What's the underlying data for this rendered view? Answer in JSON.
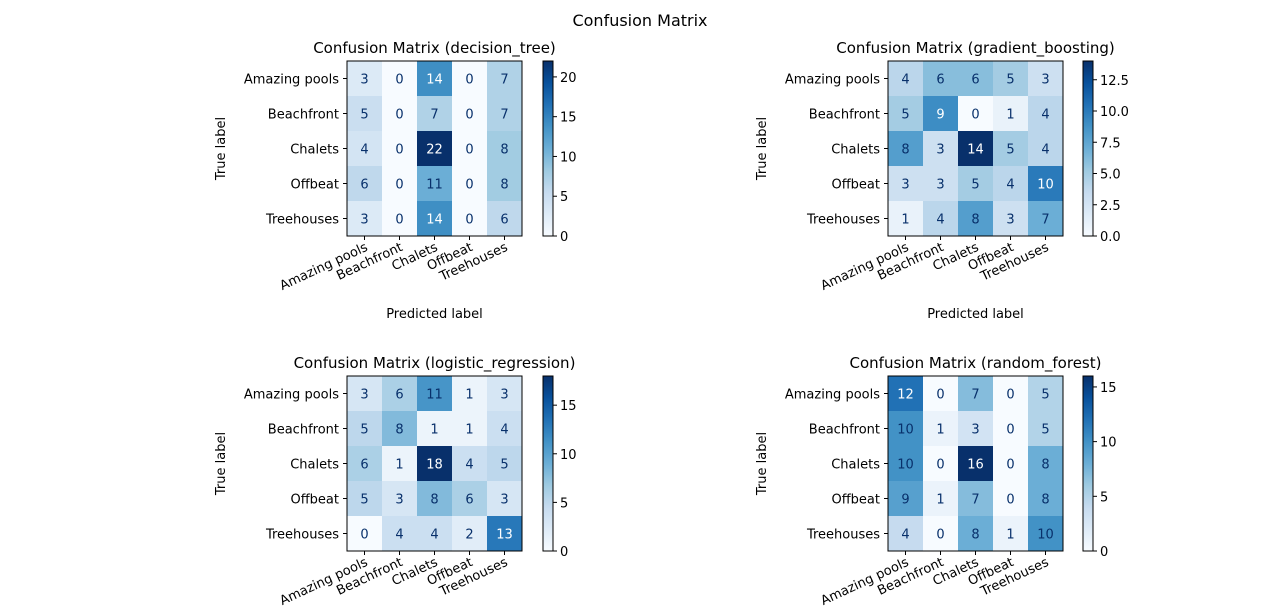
{
  "suptitle": "Confusion Matrix",
  "chart_data": [
    {
      "type": "heatmap",
      "title": "Confusion Matrix (decision_tree)",
      "xlabel": "Predicted label",
      "ylabel": "True label",
      "x_categories": [
        "Amazing pools",
        "Beachfront",
        "Chalets",
        "Offbeat",
        "Treehouses"
      ],
      "y_categories": [
        "Amazing pools",
        "Beachfront",
        "Chalets",
        "Offbeat",
        "Treehouses"
      ],
      "values": [
        [
          3,
          0,
          14,
          0,
          7
        ],
        [
          5,
          0,
          7,
          0,
          7
        ],
        [
          4,
          0,
          22,
          0,
          8
        ],
        [
          6,
          0,
          11,
          0,
          8
        ],
        [
          3,
          0,
          14,
          0,
          6
        ]
      ],
      "colorbar": {
        "min": 0,
        "max": 22,
        "ticks": [
          "0",
          "5",
          "10",
          "15",
          "20"
        ],
        "tick_values": [
          0,
          5,
          10,
          15,
          20
        ]
      },
      "colormap": "Blues"
    },
    {
      "type": "heatmap",
      "title": "Confusion Matrix (gradient_boosting)",
      "xlabel": "Predicted label",
      "ylabel": "True label",
      "x_categories": [
        "Amazing pools",
        "Beachfront",
        "Chalets",
        "Offbeat",
        "Treehouses"
      ],
      "y_categories": [
        "Amazing pools",
        "Beachfront",
        "Chalets",
        "Offbeat",
        "Treehouses"
      ],
      "values": [
        [
          4,
          6,
          6,
          5,
          3
        ],
        [
          5,
          9,
          0,
          1,
          4
        ],
        [
          8,
          3,
          14,
          5,
          4
        ],
        [
          3,
          3,
          5,
          4,
          10
        ],
        [
          1,
          4,
          8,
          3,
          7
        ]
      ],
      "colorbar": {
        "min": 0,
        "max": 14,
        "ticks": [
          "0.0",
          "2.5",
          "5.0",
          "7.5",
          "10.0",
          "12.5"
        ],
        "tick_values": [
          0,
          2.5,
          5,
          7.5,
          10,
          12.5
        ]
      },
      "colormap": "Blues"
    },
    {
      "type": "heatmap",
      "title": "Confusion Matrix (logistic_regression)",
      "xlabel": "",
      "ylabel": "True label",
      "x_categories": [
        "Amazing pools",
        "Beachfront",
        "Chalets",
        "Offbeat",
        "Treehouses"
      ],
      "y_categories": [
        "Amazing pools",
        "Beachfront",
        "Chalets",
        "Offbeat",
        "Treehouses"
      ],
      "values": [
        [
          3,
          6,
          11,
          1,
          3
        ],
        [
          5,
          8,
          1,
          1,
          4
        ],
        [
          6,
          1,
          18,
          4,
          5
        ],
        [
          5,
          3,
          8,
          6,
          3
        ],
        [
          0,
          4,
          4,
          2,
          13
        ]
      ],
      "colorbar": {
        "min": 0,
        "max": 18,
        "ticks": [
          "0",
          "5",
          "10",
          "15"
        ],
        "tick_values": [
          0,
          5,
          10,
          15
        ]
      },
      "colormap": "Blues"
    },
    {
      "type": "heatmap",
      "title": "Confusion Matrix (random_forest)",
      "xlabel": "",
      "ylabel": "True label",
      "x_categories": [
        "Amazing pools",
        "Beachfront",
        "Chalets",
        "Offbeat",
        "Treehouses"
      ],
      "y_categories": [
        "Amazing pools",
        "Beachfront",
        "Chalets",
        "Offbeat",
        "Treehouses"
      ],
      "values": [
        [
          12,
          0,
          7,
          0,
          5
        ],
        [
          10,
          1,
          3,
          0,
          5
        ],
        [
          10,
          0,
          16,
          0,
          8
        ],
        [
          9,
          1,
          7,
          0,
          8
        ],
        [
          4,
          0,
          8,
          1,
          10
        ]
      ],
      "colorbar": {
        "min": 0,
        "max": 16,
        "ticks": [
          "0",
          "5",
          "10",
          "15"
        ],
        "tick_values": [
          0,
          5,
          10,
          15
        ]
      },
      "colormap": "Blues"
    }
  ]
}
